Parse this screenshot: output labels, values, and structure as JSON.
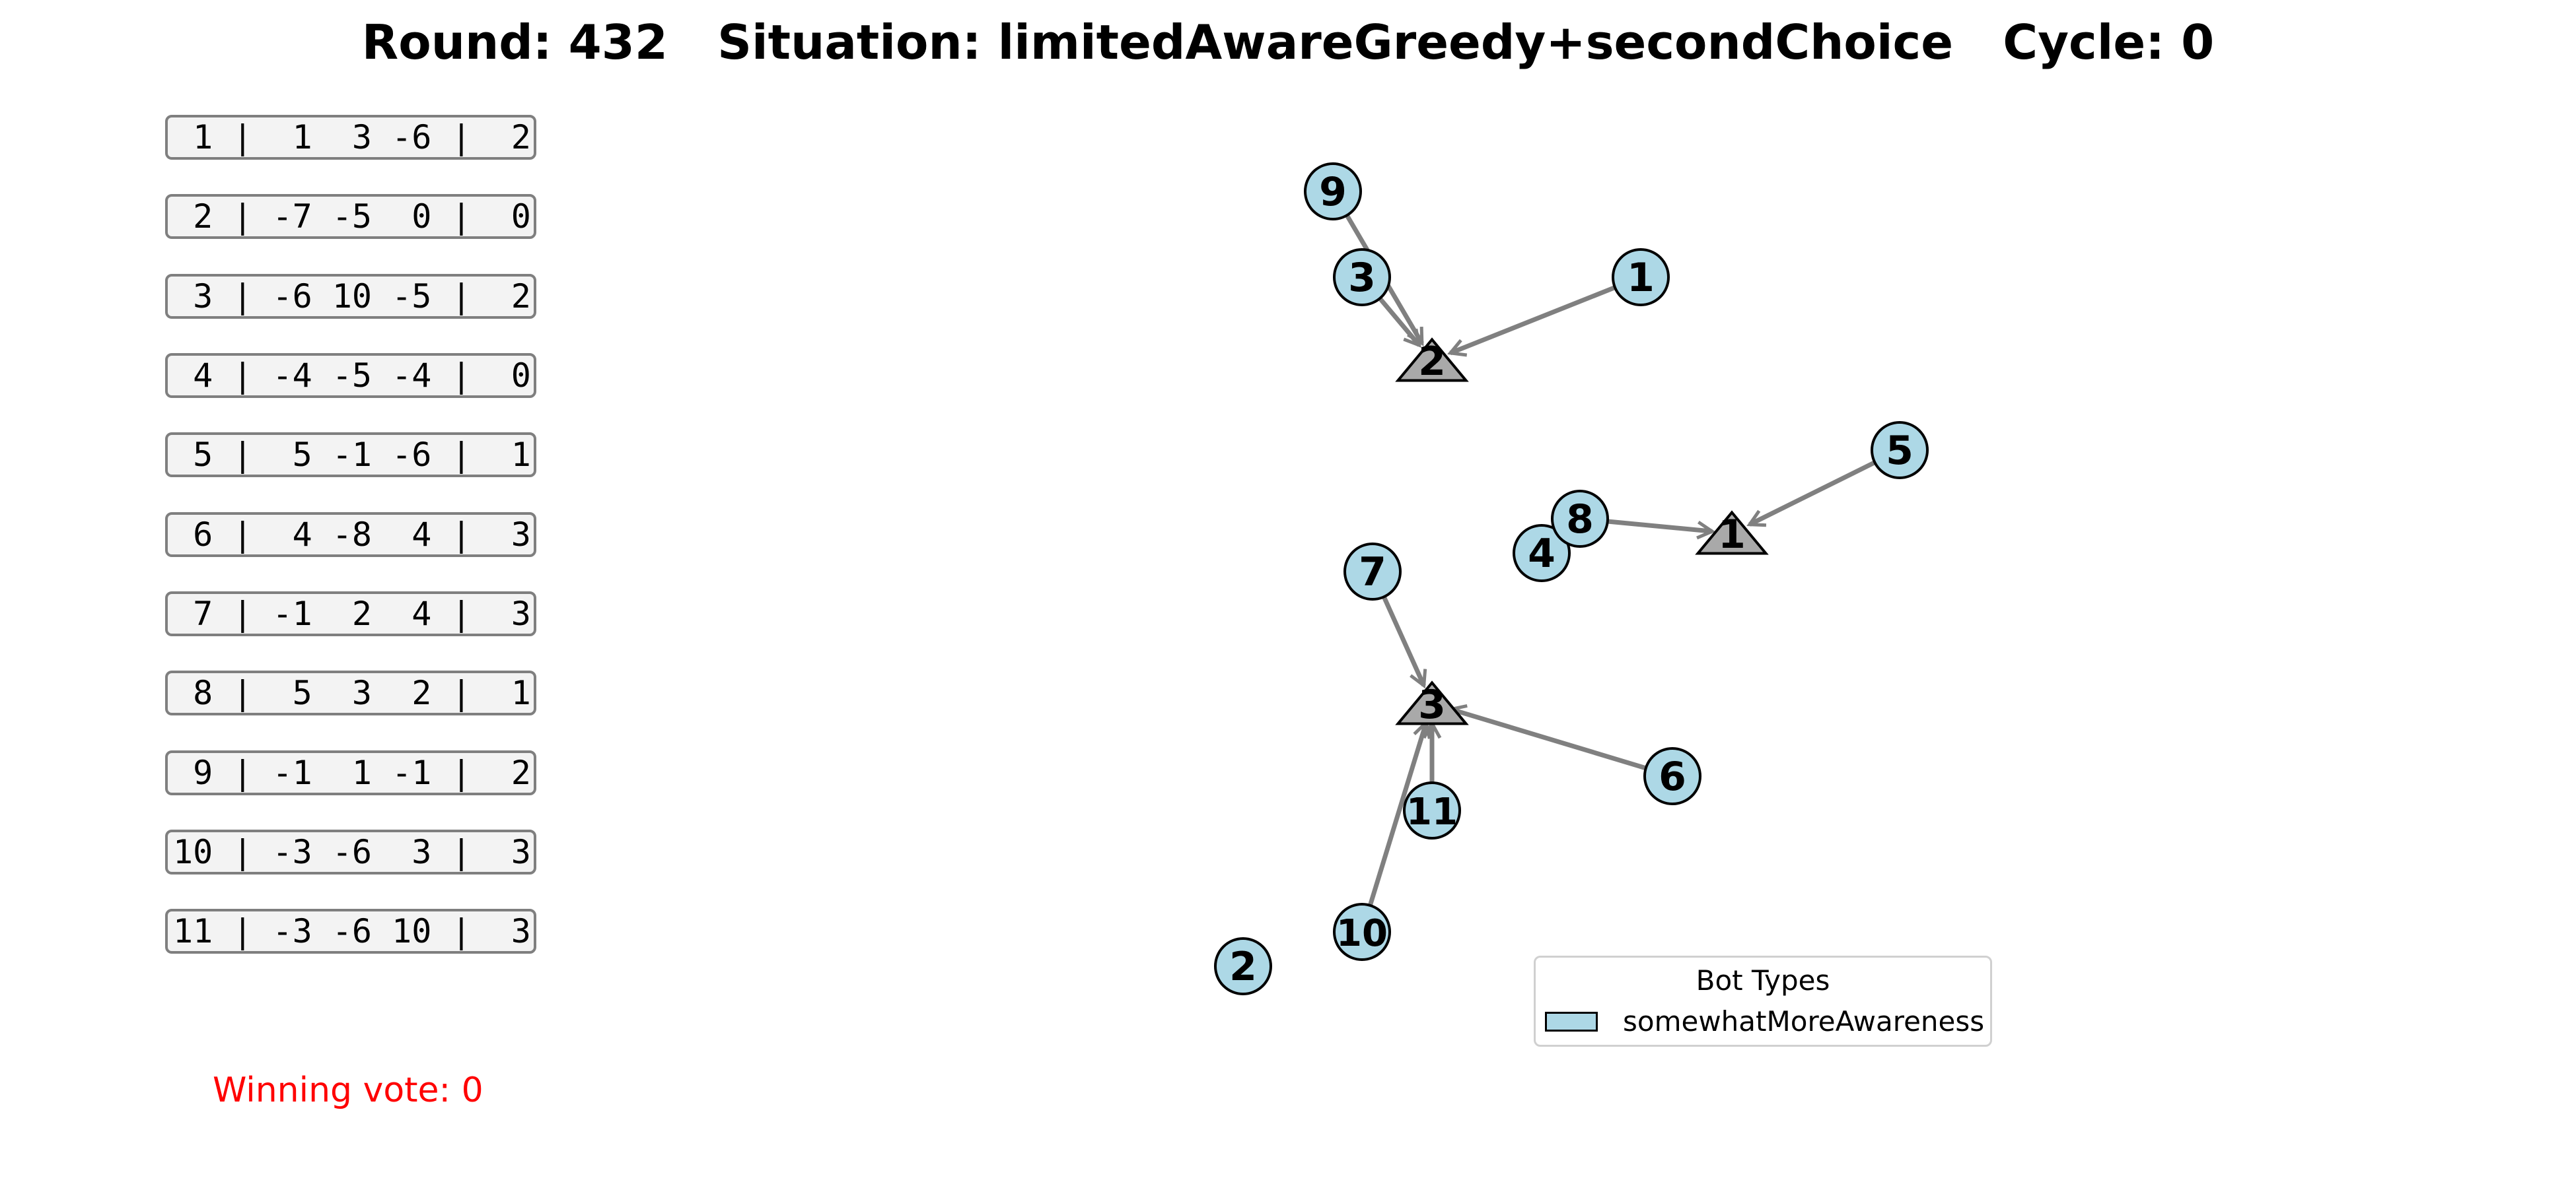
{
  "title": {
    "round_label": "Round: 432",
    "situation_label": "Situation: limitedAwareGreedy+secondChoice",
    "cycle_label": "Cycle: 0"
  },
  "agent_table": [
    {
      "row": " 1 |  1  3 -6 |  2"
    },
    {
      "row": " 2 | -7 -5  0 |  0"
    },
    {
      "row": " 3 | -6 10 -5 |  2"
    },
    {
      "row": " 4 | -4 -5 -4 |  0"
    },
    {
      "row": " 5 |  5 -1 -6 |  1"
    },
    {
      "row": " 6 |  4 -8  4 |  3"
    },
    {
      "row": " 7 | -1  2  4 |  3"
    },
    {
      "row": " 8 |  5  3  2 |  1"
    },
    {
      "row": " 9 | -1  1 -1 |  2"
    },
    {
      "row": "10 | -3 -6  3 |  3"
    },
    {
      "row": "11 | -3 -6 10 |  3"
    }
  ],
  "winning_vote": "Winning vote: 0",
  "legend": {
    "title": "Bot Types",
    "entry": "somewhatMoreAwareness",
    "swatch_color": "#add8e6"
  },
  "colors": {
    "bot_fill": "#add8e6",
    "option_fill": "#a9a9a9",
    "edge": "#808080",
    "winning_text": "#ff0000"
  },
  "network": {
    "options": [
      {
        "label": "1"
      },
      {
        "label": "2"
      },
      {
        "label": "3"
      }
    ],
    "bots": [
      {
        "label": "1",
        "target": "2"
      },
      {
        "label": "2",
        "target": null
      },
      {
        "label": "3",
        "target": "2"
      },
      {
        "label": "4",
        "target": null
      },
      {
        "label": "5",
        "target": "1"
      },
      {
        "label": "6",
        "target": "3"
      },
      {
        "label": "7",
        "target": "3"
      },
      {
        "label": "8",
        "target": "1"
      },
      {
        "label": "9",
        "target": "2"
      },
      {
        "label": "10",
        "target": "3"
      },
      {
        "label": "11",
        "target": "3"
      }
    ]
  }
}
